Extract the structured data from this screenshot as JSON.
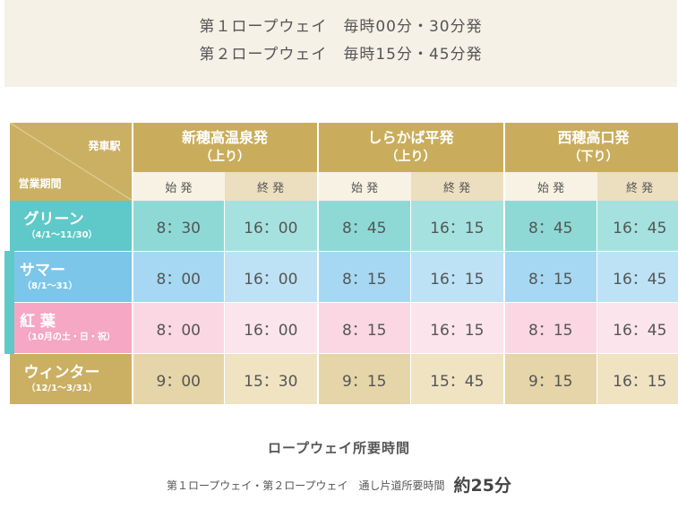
{
  "banner": {
    "line1": "第１ロープウェイ　毎時00分・30分発",
    "line2": "第２ロープウェイ　毎時15分・45分発"
  },
  "table": {
    "corner_top": "発車駅",
    "corner_bottom": "営業期間",
    "stations": [
      {
        "name": "新穂高温泉発",
        "direction": "（上り）"
      },
      {
        "name": "しらかば平発",
        "direction": "（上り）"
      },
      {
        "name": "西穂高口発",
        "direction": "（下り）"
      }
    ],
    "sub_headers": {
      "start": "始 発",
      "end": "終 発"
    },
    "rows": [
      {
        "season": "グリーン",
        "range": "（4/1～11/30）",
        "times": [
          "8：30",
          "16：00",
          "8：45",
          "16：15",
          "8：45",
          "16：45"
        ]
      },
      {
        "season": "サマー",
        "range": "（8/1～31）",
        "times": [
          "8：00",
          "16：00",
          "8：15",
          "16：15",
          "8：15",
          "16：45"
        ]
      },
      {
        "season": "紅 葉",
        "range": "（10月の土・日・祝）",
        "times": [
          "8：00",
          "16：00",
          "8：15",
          "16：15",
          "8：15",
          "16：45"
        ]
      },
      {
        "season": "ウィンター",
        "range": "（12/1～3/31）",
        "times": [
          "9：00",
          "15：30",
          "9：15",
          "15：45",
          "9：15",
          "16：15"
        ]
      }
    ]
  },
  "footer": {
    "title": "ロープウェイ所要時間",
    "desc": "第１ロープウェイ・第２ロープウェイ　通し片道所要時間",
    "duration": "約25分"
  },
  "colors": {
    "gold": "#cbb063",
    "green": "#5ec9c8",
    "summer": "#7cc6e9",
    "koyo": "#f5a7c3"
  }
}
